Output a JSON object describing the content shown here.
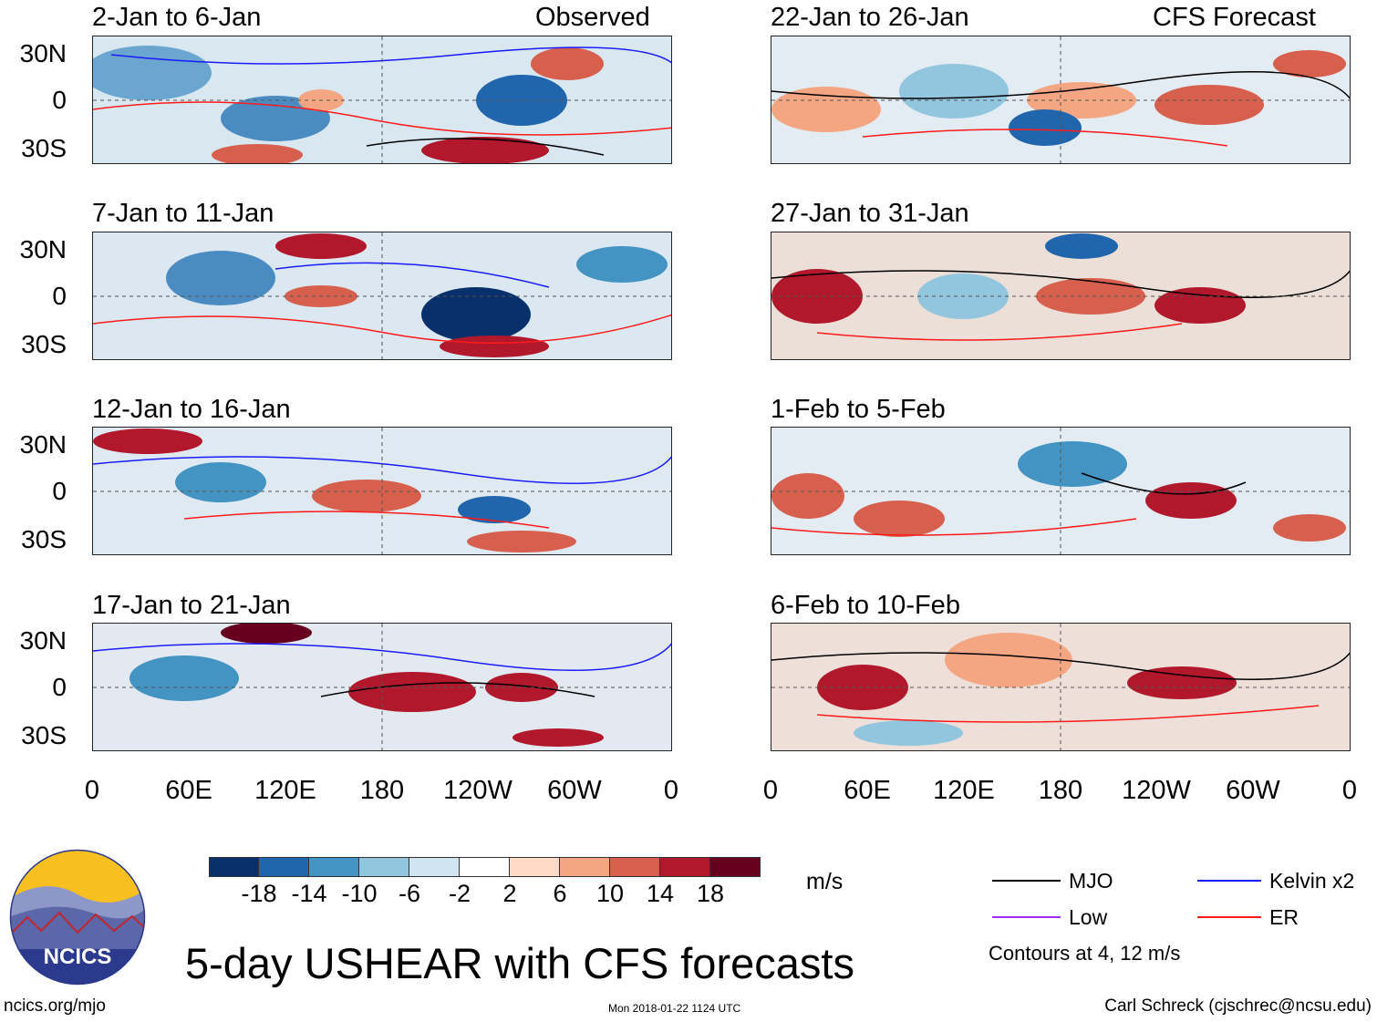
{
  "panels_left_header": "Observed",
  "panels_right_header": "CFS Forecast",
  "left_panels": [
    {
      "title": "2-Jan to 6-Jan"
    },
    {
      "title": "7-Jan to 11-Jan"
    },
    {
      "title": "12-Jan to 16-Jan"
    },
    {
      "title": "17-Jan to 21-Jan"
    }
  ],
  "right_panels": [
    {
      "title": "22-Jan to 26-Jan"
    },
    {
      "title": "27-Jan to 31-Jan"
    },
    {
      "title": "1-Feb to 5-Feb"
    },
    {
      "title": "6-Feb to 10-Feb"
    }
  ],
  "lat_labels": [
    "30N",
    "0",
    "30S"
  ],
  "lon_labels": [
    "0",
    "60E",
    "120E",
    "180",
    "120W",
    "60W",
    "0"
  ],
  "colorbar": {
    "units": "m/s",
    "ticks": [
      "-18",
      "-14",
      "-10",
      "-6",
      "-2",
      "2",
      "6",
      "10",
      "14",
      "18"
    ],
    "colors": [
      "#08306b",
      "#2166ac",
      "#4393c3",
      "#92c5de",
      "#d1e5f0",
      "#ffffff",
      "#fddbc7",
      "#f4a582",
      "#d6604d",
      "#b2182b",
      "#67001f"
    ]
  },
  "legend": {
    "mjo": "MJO",
    "mjo_color": "#000000",
    "kelvin": "Kelvin x2",
    "kelvin_color": "#1a1aff",
    "low": "Low",
    "low_color": "#9b30ff",
    "er": "ER",
    "er_color": "#ff1a1a",
    "note": "Contours at 4, 12 m/s"
  },
  "main_title": "5-day USHEAR with CFS forecasts",
  "logo_text": "NCICS",
  "footer_left": "ncics.org/mjo",
  "footer_center": "Mon 2018-01-22 1124 UTC",
  "footer_right": "Carl Schreck (cjschrec@ncsu.edu)"
}
